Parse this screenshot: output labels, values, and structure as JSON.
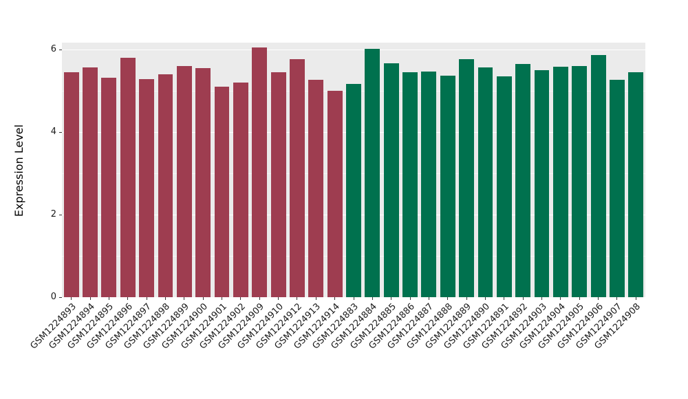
{
  "chart_data": {
    "type": "bar",
    "title": "",
    "xlabel": "",
    "ylabel": "Expression Level",
    "ylim": [
      0,
      6.1667
    ],
    "yticks": [
      0,
      2,
      4,
      6
    ],
    "yminor": [
      1,
      3,
      5
    ],
    "grid": "on",
    "legend_position": "none",
    "panel_bg": "#ebebeb",
    "grid_major_color": "#ffffff",
    "grid_minor_color": "rgba(255,255,255,0.55)",
    "axis_text_color": "#1a1a1a",
    "palette": [
      "#9e3d50",
      "#00714e"
    ],
    "group_names": [
      "maroon-group",
      "green-group"
    ],
    "categories": [
      "GSM1224893",
      "GSM1224894",
      "GSM1224895",
      "GSM1224896",
      "GSM1224897",
      "GSM1224898",
      "GSM1224899",
      "GSM1224900",
      "GSM1224901",
      "GSM1224902",
      "GSM1224909",
      "GSM1224910",
      "GSM1224912",
      "GSM1224913",
      "GSM1224914",
      "GSM1224883",
      "GSM1224884",
      "GSM1224885",
      "GSM1224886",
      "GSM1224887",
      "GSM1224888",
      "GSM1224889",
      "GSM1224890",
      "GSM1224891",
      "GSM1224892",
      "GSM1224903",
      "GSM1224904",
      "GSM1224905",
      "GSM1224906",
      "GSM1224907",
      "GSM1224908"
    ],
    "values": [
      5.45,
      5.57,
      5.32,
      5.8,
      5.28,
      5.4,
      5.6,
      5.55,
      5.1,
      5.2,
      6.05,
      5.45,
      5.77,
      5.26,
      5.0,
      5.16,
      6.02,
      5.66,
      5.45,
      5.46,
      5.36,
      5.76,
      5.57,
      5.35,
      5.65,
      5.5,
      5.58,
      5.6,
      5.86,
      5.27,
      5.45
    ],
    "groups": [
      0,
      0,
      0,
      0,
      0,
      0,
      0,
      0,
      0,
      0,
      0,
      0,
      0,
      0,
      0,
      1,
      1,
      1,
      1,
      1,
      1,
      1,
      1,
      1,
      1,
      1,
      1,
      1,
      1,
      1,
      1
    ]
  }
}
